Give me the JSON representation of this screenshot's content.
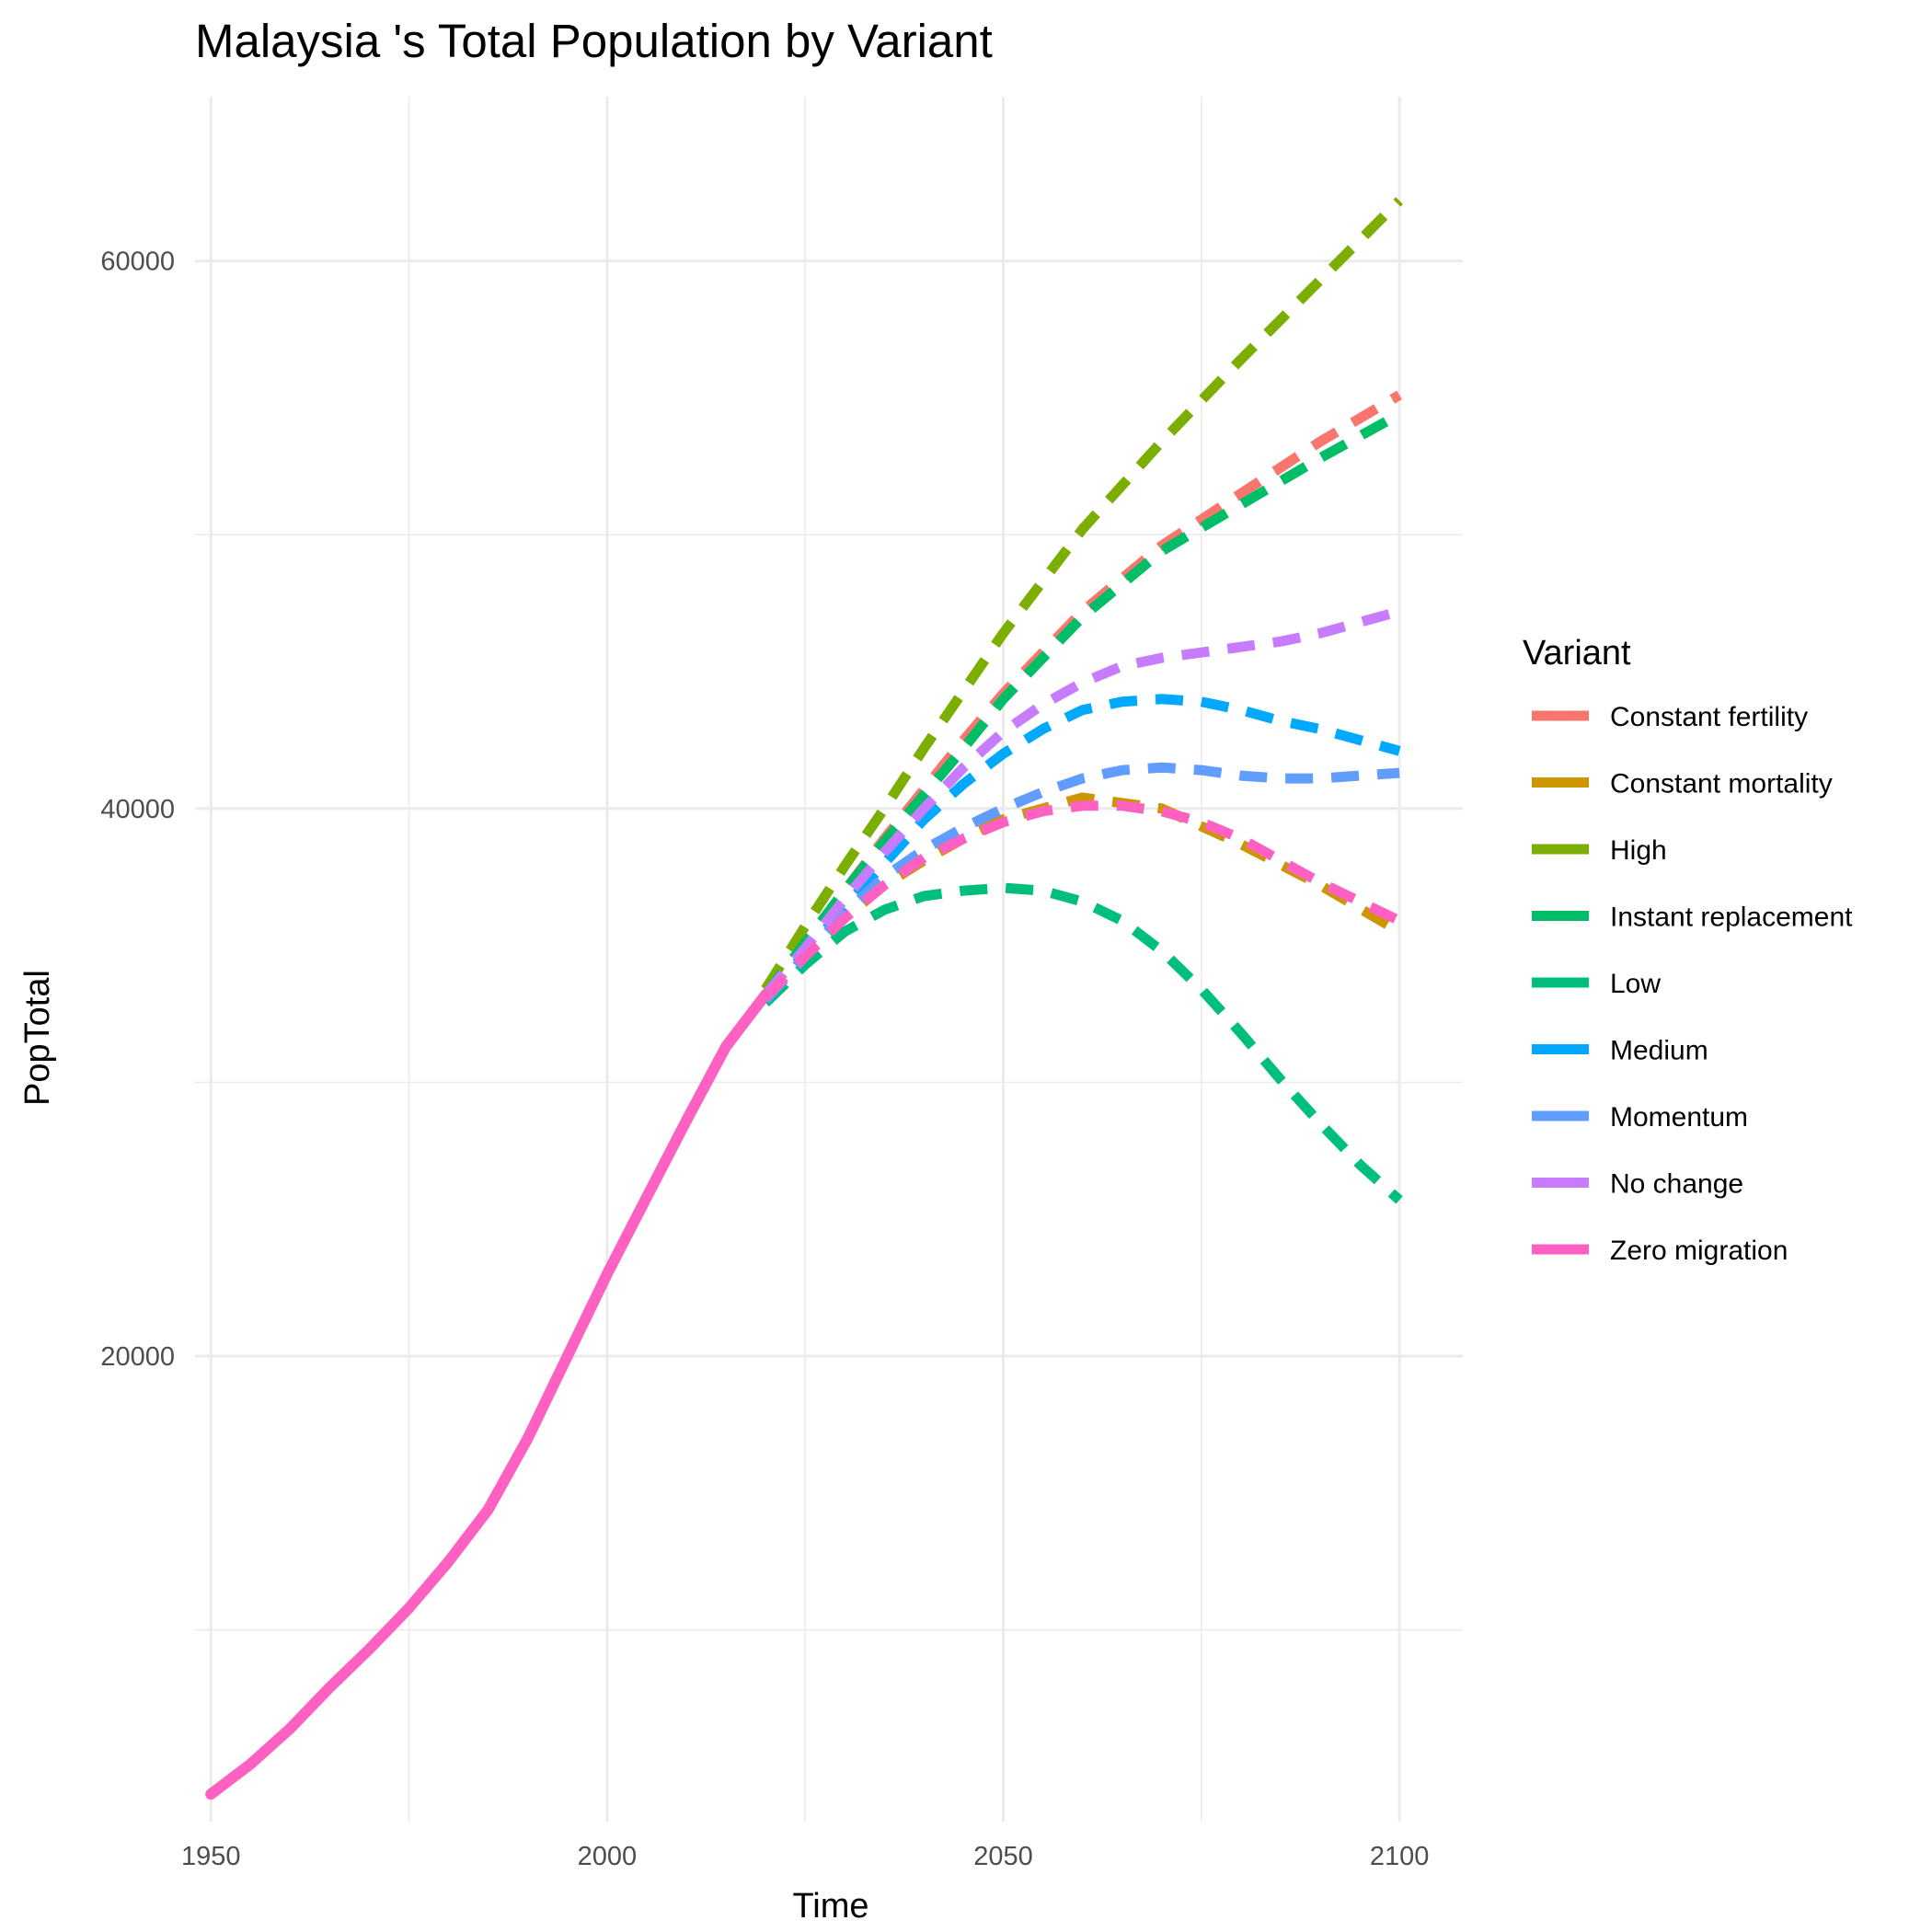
{
  "chart_data": {
    "type": "line",
    "title": "Malaysia 's Total Population by Variant",
    "xlabel": "Time",
    "ylabel": "PopTotal",
    "xlim": [
      1948,
      2108
    ],
    "ylim": [
      3000,
      66000
    ],
    "x_ticks": [
      1950,
      2000,
      2050,
      2100
    ],
    "y_ticks": [
      20000,
      40000,
      60000
    ],
    "x_minor_ticks": [
      1975,
      2025,
      2075
    ],
    "y_minor_ticks": [
      10000,
      30000,
      50000
    ],
    "grid": true,
    "legend_title": "Variant",
    "legend_position": "right",
    "historical": {
      "name": "Zero migration",
      "color": "#FF61C3",
      "x": [
        1950,
        1955,
        1960,
        1965,
        1970,
        1975,
        1980,
        1985,
        1990,
        1995,
        2000,
        2005,
        2010,
        2015,
        2020
      ],
      "y": [
        4000,
        5100,
        6400,
        7900,
        9300,
        10800,
        12500,
        14400,
        17000,
        20000,
        23000,
        25800,
        28600,
        31300,
        33200
      ]
    },
    "series": [
      {
        "name": "Constant fertility",
        "color": "#F8766D",
        "x": [
          2020,
          2025,
          2030,
          2035,
          2040,
          2045,
          2050,
          2060,
          2070,
          2080,
          2090,
          2100
        ],
        "y": [
          33200,
          35000,
          37000,
          38900,
          40700,
          42500,
          44200,
          47200,
          49600,
          51500,
          53400,
          55100
        ]
      },
      {
        "name": "Constant mortality",
        "color": "#CD9600",
        "x": [
          2020,
          2025,
          2030,
          2035,
          2040,
          2045,
          2050,
          2060,
          2070,
          2080,
          2090,
          2100
        ],
        "y": [
          33000,
          34600,
          36000,
          37200,
          38100,
          38900,
          39600,
          40400,
          40000,
          38700,
          37200,
          35500
        ]
      },
      {
        "name": "High",
        "color": "#7CAE00",
        "x": [
          2020,
          2025,
          2030,
          2035,
          2040,
          2045,
          2050,
          2060,
          2070,
          2080,
          2090,
          2100
        ],
        "y": [
          33400,
          35700,
          37900,
          40000,
          42200,
          44300,
          46400,
          50200,
          53400,
          56400,
          59300,
          62200
        ]
      },
      {
        "name": "Instant replacement",
        "color": "#00BE67",
        "x": [
          2020,
          2025,
          2030,
          2035,
          2040,
          2045,
          2050,
          2060,
          2070,
          2080,
          2090,
          2100
        ],
        "y": [
          33200,
          35100,
          37000,
          38800,
          40500,
          42200,
          44000,
          47000,
          49400,
          51100,
          52800,
          54400
        ]
      },
      {
        "name": "Low",
        "color": "#00BF7D",
        "x": [
          2020,
          2025,
          2030,
          2035,
          2040,
          2045,
          2050,
          2055,
          2060,
          2065,
          2070,
          2075,
          2080,
          2085,
          2090,
          2095,
          2100
        ],
        "y": [
          32900,
          34300,
          35500,
          36300,
          36800,
          37000,
          37100,
          37000,
          36600,
          35900,
          34800,
          33400,
          31800,
          30100,
          28500,
          27000,
          25700
        ]
      },
      {
        "name": "Medium",
        "color": "#00A9FF",
        "x": [
          2020,
          2025,
          2030,
          2035,
          2040,
          2045,
          2050,
          2055,
          2060,
          2065,
          2070,
          2075,
          2080,
          2085,
          2090,
          2095,
          2100
        ],
        "y": [
          33100,
          34700,
          36400,
          38000,
          39600,
          40900,
          42000,
          42900,
          43600,
          43900,
          44000,
          43900,
          43600,
          43200,
          42900,
          42500,
          42100
        ]
      },
      {
        "name": "Momentum",
        "color": "#619CFF",
        "x": [
          2020,
          2025,
          2030,
          2035,
          2040,
          2045,
          2050,
          2055,
          2060,
          2065,
          2070,
          2075,
          2080,
          2085,
          2090,
          2095,
          2100
        ],
        "y": [
          33000,
          34600,
          36200,
          37500,
          38500,
          39300,
          40000,
          40600,
          41100,
          41400,
          41500,
          41400,
          41200,
          41100,
          41100,
          41200,
          41300
        ]
      },
      {
        "name": "No change",
        "color": "#C77CFF",
        "x": [
          2020,
          2025,
          2030,
          2035,
          2040,
          2045,
          2050,
          2055,
          2060,
          2065,
          2070,
          2075,
          2080,
          2085,
          2090,
          2095,
          2100
        ],
        "y": [
          33200,
          34900,
          36700,
          38400,
          40000,
          41500,
          42800,
          43800,
          44600,
          45200,
          45500,
          45700,
          45900,
          46100,
          46400,
          46800,
          47200
        ]
      },
      {
        "name": "Zero migration",
        "color": "#FF61C3",
        "x": [
          2020,
          2025,
          2030,
          2035,
          2040,
          2045,
          2050,
          2055,
          2060,
          2065,
          2070,
          2075,
          2080,
          2085,
          2090,
          2095,
          2100
        ],
        "y": [
          33100,
          34600,
          36000,
          37200,
          38200,
          38900,
          39500,
          39900,
          40100,
          40100,
          39900,
          39500,
          38900,
          38100,
          37300,
          36600,
          35900
        ]
      }
    ]
  }
}
